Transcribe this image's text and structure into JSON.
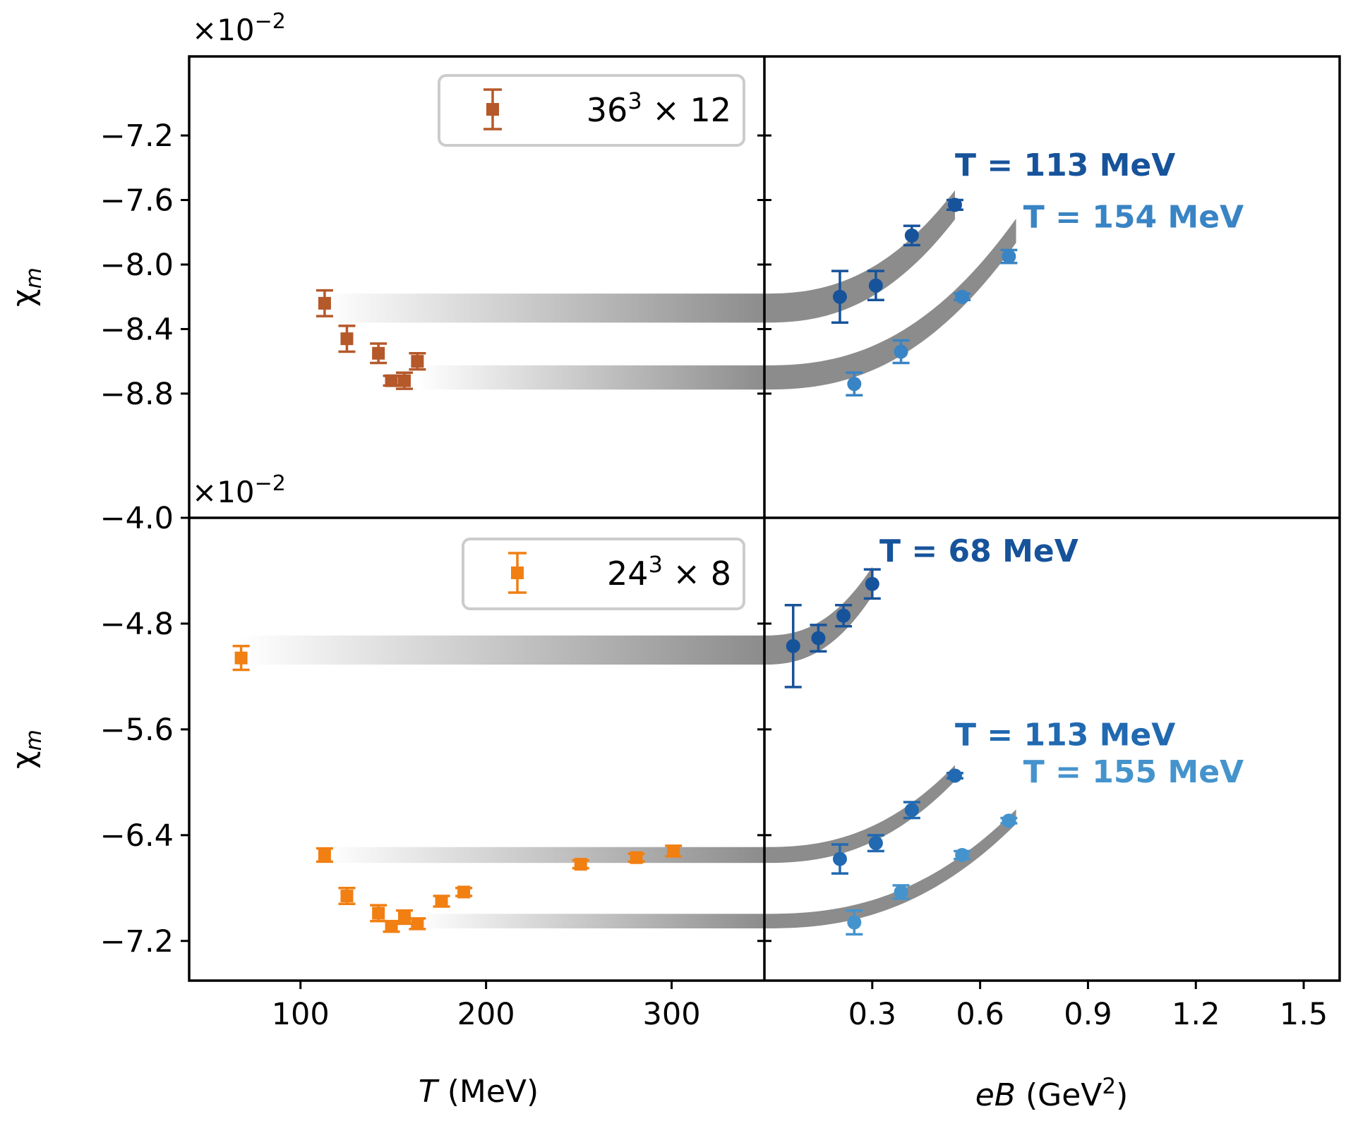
{
  "figure": {
    "y_label": "χ",
    "y_label_sub": "m",
    "x_label_left_italic": "T",
    "x_label_left_rest": " (MeV)",
    "x_label_right_italic": "eB",
    "x_label_right_rest": " (GeV",
    "x_label_right_sup": "2",
    "x_label_right_close": ")",
    "scale_prefix": "×10",
    "scale_exp": "−2"
  },
  "chart_data": [
    {
      "type": "scatter",
      "panel": "top-left",
      "title": "",
      "xlabel": "T (MeV)",
      "ylabel": "χm",
      "xlim": [
        40,
        350
      ],
      "ylim": [
        -9.57,
        -6.71
      ],
      "y_scale_note": "×10^-2",
      "yticks": [
        -7.2,
        -7.6,
        -8.0,
        -8.4,
        -8.8
      ],
      "ytick_labels": [
        "−7.2",
        "−7.6",
        "−8.0",
        "−8.4",
        "−8.8"
      ],
      "legend": {
        "base": "36",
        "sup": "3",
        "rest": " × 12",
        "placement": "top-right"
      },
      "color": "#b5582a",
      "series": [
        {
          "name": "36³ × 12",
          "x": [
            113,
            125,
            142,
            149,
            156,
            163
          ],
          "y": [
            -8.24,
            -8.46,
            -8.55,
            -8.72,
            -8.72,
            -8.6
          ],
          "yerr": [
            0.08,
            0.08,
            0.06,
            0.03,
            0.05,
            0.05
          ]
        }
      ],
      "bands": [
        {
          "x0": 113,
          "y": -8.27,
          "half": 0.09
        },
        {
          "x0": 163,
          "y": -8.7,
          "half": 0.075
        }
      ]
    },
    {
      "type": "scatter",
      "panel": "top-right",
      "title": "",
      "xlabel": "eB (GeV²)",
      "ylabel": "",
      "xlim": [
        0,
        1.6
      ],
      "ylim": [
        -9.57,
        -6.71
      ],
      "series": [
        {
          "name": "T = 113 MeV",
          "color": "#17539b",
          "x": [
            0.21,
            0.31,
            0.41,
            0.53
          ],
          "y": [
            -8.2,
            -8.13,
            -7.82,
            -7.63
          ],
          "yerr": [
            0.16,
            0.09,
            0.06,
            0.03
          ]
        },
        {
          "name": "T = 154 MeV",
          "color": "#3984c4",
          "x": [
            0.25,
            0.38,
            0.55,
            0.68
          ],
          "y": [
            -8.74,
            -8.54,
            -8.2,
            -7.95
          ],
          "yerr": [
            0.07,
            0.07,
            0.02,
            0.04
          ]
        }
      ],
      "curves": [
        {
          "y0": -8.27,
          "x_end": 0.53,
          "y_end": -7.63,
          "half": 0.09
        },
        {
          "y0": -8.7,
          "x_end": 0.7,
          "y_end": -7.79,
          "half": 0.075
        }
      ],
      "annotations": [
        {
          "text": "T = 113 MeV",
          "x": 0.53,
          "y": -7.45,
          "color": "#17539b"
        },
        {
          "text": "T = 154 MeV",
          "x": 0.72,
          "y": -7.77,
          "color": "#3984c4"
        }
      ]
    },
    {
      "type": "scatter",
      "panel": "bottom-left",
      "title": "",
      "xlabel": "T (MeV)",
      "ylabel": "χm",
      "xlim": [
        40,
        350
      ],
      "ylim": [
        -7.5,
        -4.0
      ],
      "y_scale_note": "×10^-2",
      "yticks": [
        -4.0,
        -4.8,
        -5.6,
        -6.4,
        -7.2
      ],
      "ytick_labels": [
        "−4.0",
        "−4.8",
        "−5.6",
        "−6.4",
        "−7.2"
      ],
      "legend": {
        "base": "24",
        "sup": "3",
        "rest": " × 8",
        "placement": "top-right"
      },
      "color": "#f17f12",
      "series": [
        {
          "name": "24³ × 8",
          "x": [
            68,
            113,
            125,
            142,
            149,
            156,
            163,
            176,
            188,
            251,
            281,
            301
          ],
          "y": [
            -5.06,
            -6.55,
            -6.86,
            -6.99,
            -7.09,
            -7.02,
            -7.07,
            -6.9,
            -6.83,
            -6.62,
            -6.57,
            -6.52
          ],
          "yerr": [
            0.09,
            0.05,
            0.06,
            0.06,
            0.04,
            0.05,
            0.04,
            0.04,
            0.03,
            0.03,
            0.03,
            0.04
          ]
        }
      ],
      "bands": [
        {
          "x0": 68,
          "y": -5.0,
          "half": 0.11
        },
        {
          "x0": 113,
          "y": -6.55,
          "half": 0.06
        },
        {
          "x0": 163,
          "y": -7.05,
          "half": 0.055
        }
      ]
    },
    {
      "type": "scatter",
      "panel": "bottom-right",
      "title": "",
      "xlabel": "eB (GeV²)",
      "ylabel": "",
      "xlim": [
        0,
        1.6
      ],
      "ylim": [
        -7.5,
        -4.0
      ],
      "xticks": [
        0.3,
        0.6,
        0.9,
        1.2,
        1.5
      ],
      "xtick_labels": [
        "0.3",
        "0.6",
        "0.9",
        "1.2",
        "1.5"
      ],
      "series": [
        {
          "name": "T = 68 MeV",
          "color": "#17539b",
          "x": [
            0.08,
            0.15,
            0.22,
            0.3
          ],
          "y": [
            -4.97,
            -4.91,
            -4.74,
            -4.5
          ],
          "yerr": [
            0.31,
            0.1,
            0.08,
            0.11
          ]
        },
        {
          "name": "T = 113 MeV",
          "color": "#2169b0",
          "x": [
            0.21,
            0.31,
            0.41,
            0.53
          ],
          "y": [
            -6.58,
            -6.46,
            -6.21,
            -5.95
          ],
          "yerr": [
            0.11,
            0.06,
            0.06,
            0.02
          ]
        },
        {
          "name": "T = 155 MeV",
          "color": "#4593cc",
          "x": [
            0.25,
            0.38,
            0.55,
            0.68
          ],
          "y": [
            -7.06,
            -6.83,
            -6.55,
            -6.29
          ],
          "yerr": [
            0.09,
            0.05,
            0.03,
            0.02
          ]
        }
      ],
      "curves": [
        {
          "y0": -5.0,
          "x_end": 0.3,
          "y_end": -4.48,
          "half": 0.11
        },
        {
          "y0": -6.55,
          "x_end": 0.53,
          "y_end": -5.93,
          "half": 0.06
        },
        {
          "y0": -7.05,
          "x_end": 0.7,
          "y_end": -6.26,
          "half": 0.055
        }
      ],
      "annotations": [
        {
          "text": "T = 68 MeV",
          "x": 0.32,
          "y": -4.33,
          "color": "#17539b"
        },
        {
          "text": "T = 113 MeV",
          "x": 0.53,
          "y": -5.72,
          "color": "#2169b0"
        },
        {
          "text": "T = 155 MeV",
          "x": 0.72,
          "y": -6.0,
          "color": "#4593cc"
        }
      ]
    }
  ],
  "left_xticks": [
    100,
    200,
    300
  ],
  "left_xtick_labels": [
    "100",
    "200",
    "300"
  ]
}
